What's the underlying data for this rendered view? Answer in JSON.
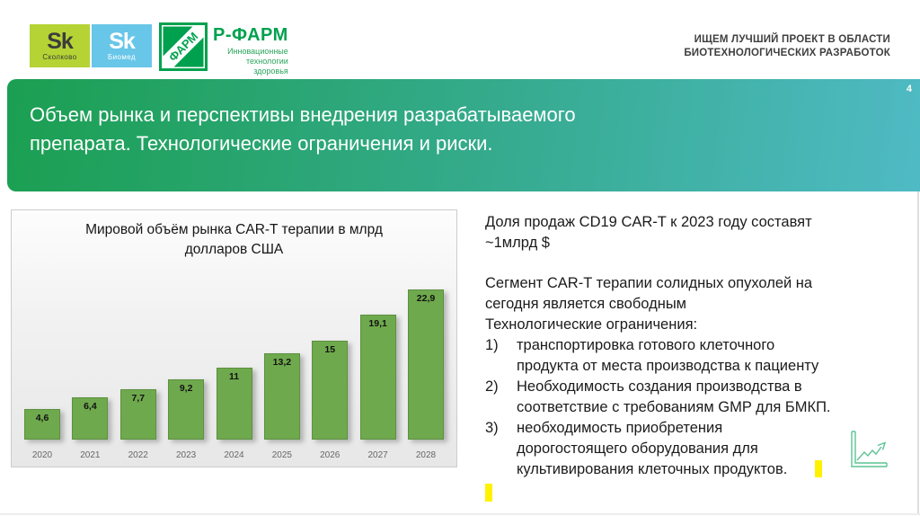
{
  "header": {
    "logos": {
      "skolkovo": {
        "sk": "Sk",
        "label": "Сколково"
      },
      "biomed": {
        "sk": "Sk",
        "label": "Биомед"
      },
      "rpharm": {
        "mark": "ФАРМ",
        "name": "Р-ФАРМ",
        "tagline": "Инновационные\nтехнологии\nздоровья"
      }
    },
    "tagline": "ИЩЕМ ЛУЧШИЙ ПРОЕКТ В ОБЛАСТИ\nБИОТЕХНОЛОГИЧЕСКИХ РАЗРАБОТОК"
  },
  "title_band": {
    "page_number": "4",
    "title": "Объем рынка и перспективы внедрения разрабатываемого\nпрепарата. Технологические ограничения и риски."
  },
  "chart_data": {
    "type": "bar",
    "title": "Мировой объём рынка CAR-T терапии в млрд\nдолларов США",
    "categories": [
      "2020",
      "2021",
      "2022",
      "2023",
      "2024",
      "2025",
      "2026",
      "2027",
      "2028"
    ],
    "values": [
      4.6,
      6.4,
      7.7,
      9.2,
      11,
      13.2,
      15,
      19.1,
      22.9
    ],
    "value_labels": [
      "4,6",
      "6,4",
      "7,7",
      "9,2",
      "11",
      "13,2",
      "15",
      "19,1",
      "22,9"
    ],
    "xlabel": "",
    "ylabel": "млрд долларов США",
    "ylim": [
      0,
      24
    ],
    "grid": false,
    "legend": "none",
    "bar_color": "#6fa94d"
  },
  "right_panel": {
    "paragraph1": " Доля продаж CD19 CAR-T к 2023 году составят\n~1млрд $",
    "paragraph2": "Сегмент CAR-T терапии солидных опухолей на\nсегодня является свободным\nТехнологические ограничения:",
    "list": [
      {
        "num": "1)",
        "text": "транспортировка готового клеточного\nпродукта от места производства к пациенту"
      },
      {
        "num": "2)",
        "text": "Необходимость создания производства в\nсоответствие с требованиям GMP для БМКП."
      },
      {
        "num": "3)",
        "text": "необходимость приобретения\nдорогостоящего оборудования для\nкультивирования  клеточных продуктов."
      }
    ]
  },
  "colors": {
    "band_gradient_start": "#1b9f51",
    "band_gradient_end": "#4fbac4",
    "bar_green": "#6fa94d",
    "skolkovo_lime": "#b5d334",
    "biomed_blue": "#68c6e9",
    "rpharm_green": "#00a14e",
    "highlight_yellow": "#fff200",
    "trend_icon_green": "#5cc494"
  },
  "icons": {
    "trend": "trend-chart-icon"
  }
}
